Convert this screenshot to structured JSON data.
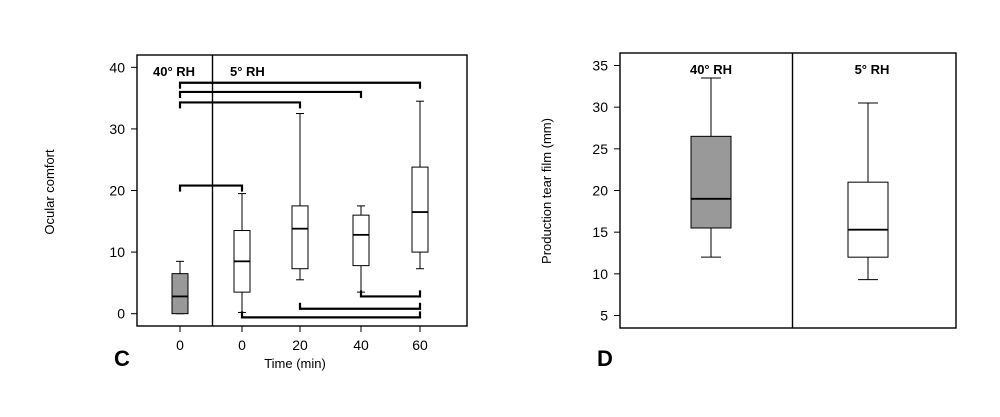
{
  "chart_data": [
    {
      "type": "box",
      "panel_label": "C",
      "xlabel": "Time (min)",
      "ylabel": "Ocular comfort",
      "ylim": [
        -2,
        42
      ],
      "yticks": [
        "0",
        "10",
        "20",
        "30",
        "40"
      ],
      "regions": [
        "40° RH",
        "5° RH"
      ],
      "categories": [
        "0",
        "0",
        "20",
        "40",
        "60"
      ],
      "boxes": [
        {
          "x": "0",
          "region": "40° RH",
          "fill": "#999999",
          "min": 0,
          "q1": 0,
          "median": 2.8,
          "q3": 6.5,
          "max": 8.5
        },
        {
          "x": "0",
          "region": "5° RH",
          "fill": "#ffffff",
          "min": 0.2,
          "q1": 3.5,
          "median": 8.5,
          "q3": 13.5,
          "max": 19.5
        },
        {
          "x": "20",
          "region": "5° RH",
          "fill": "#ffffff",
          "min": 5.5,
          "q1": 7.3,
          "median": 13.8,
          "q3": 17.5,
          "max": 32.5
        },
        {
          "x": "40",
          "region": "5° RH",
          "fill": "#ffffff",
          "min": 3.5,
          "q1": 7.8,
          "median": 12.8,
          "q3": 16.0,
          "max": 17.5
        },
        {
          "x": "60",
          "region": "5° RH",
          "fill": "#ffffff",
          "min": 7.3,
          "q1": 10.0,
          "median": 16.5,
          "q3": 23.8,
          "max": 34.5
        }
      ],
      "significance_brackets": [
        {
          "from": 0,
          "to": 4,
          "y": 37.5,
          "side": "above"
        },
        {
          "from": 0,
          "to": 3,
          "y": 36.0,
          "side": "above"
        },
        {
          "from": 0,
          "to": 2,
          "y": 34.3,
          "side": "above"
        },
        {
          "from": 0,
          "to": 1,
          "y": 20.8,
          "side": "above"
        },
        {
          "from": 3,
          "to": 4,
          "y": 2.8,
          "side": "below"
        },
        {
          "from": 2,
          "to": 4,
          "y": 0.8,
          "side": "below"
        },
        {
          "from": 1,
          "to": 4,
          "y": -0.6,
          "side": "below"
        }
      ]
    },
    {
      "type": "box",
      "panel_label": "D",
      "xlabel": "",
      "ylabel": "Production tear film (mm)",
      "ylim": [
        3.5,
        36.5
      ],
      "yticks": [
        "5",
        "10",
        "15",
        "20",
        "25",
        "30",
        "35"
      ],
      "regions": [
        "40° RH",
        "5° RH"
      ],
      "boxes": [
        {
          "region": "40° RH",
          "fill": "#999999",
          "min": 12.0,
          "q1": 15.5,
          "median": 19.0,
          "q3": 26.5,
          "max": 33.5
        },
        {
          "region": "5° RH",
          "fill": "#ffffff",
          "min": 9.3,
          "q1": 12.0,
          "median": 15.3,
          "q3": 21.0,
          "max": 30.5
        }
      ]
    }
  ]
}
